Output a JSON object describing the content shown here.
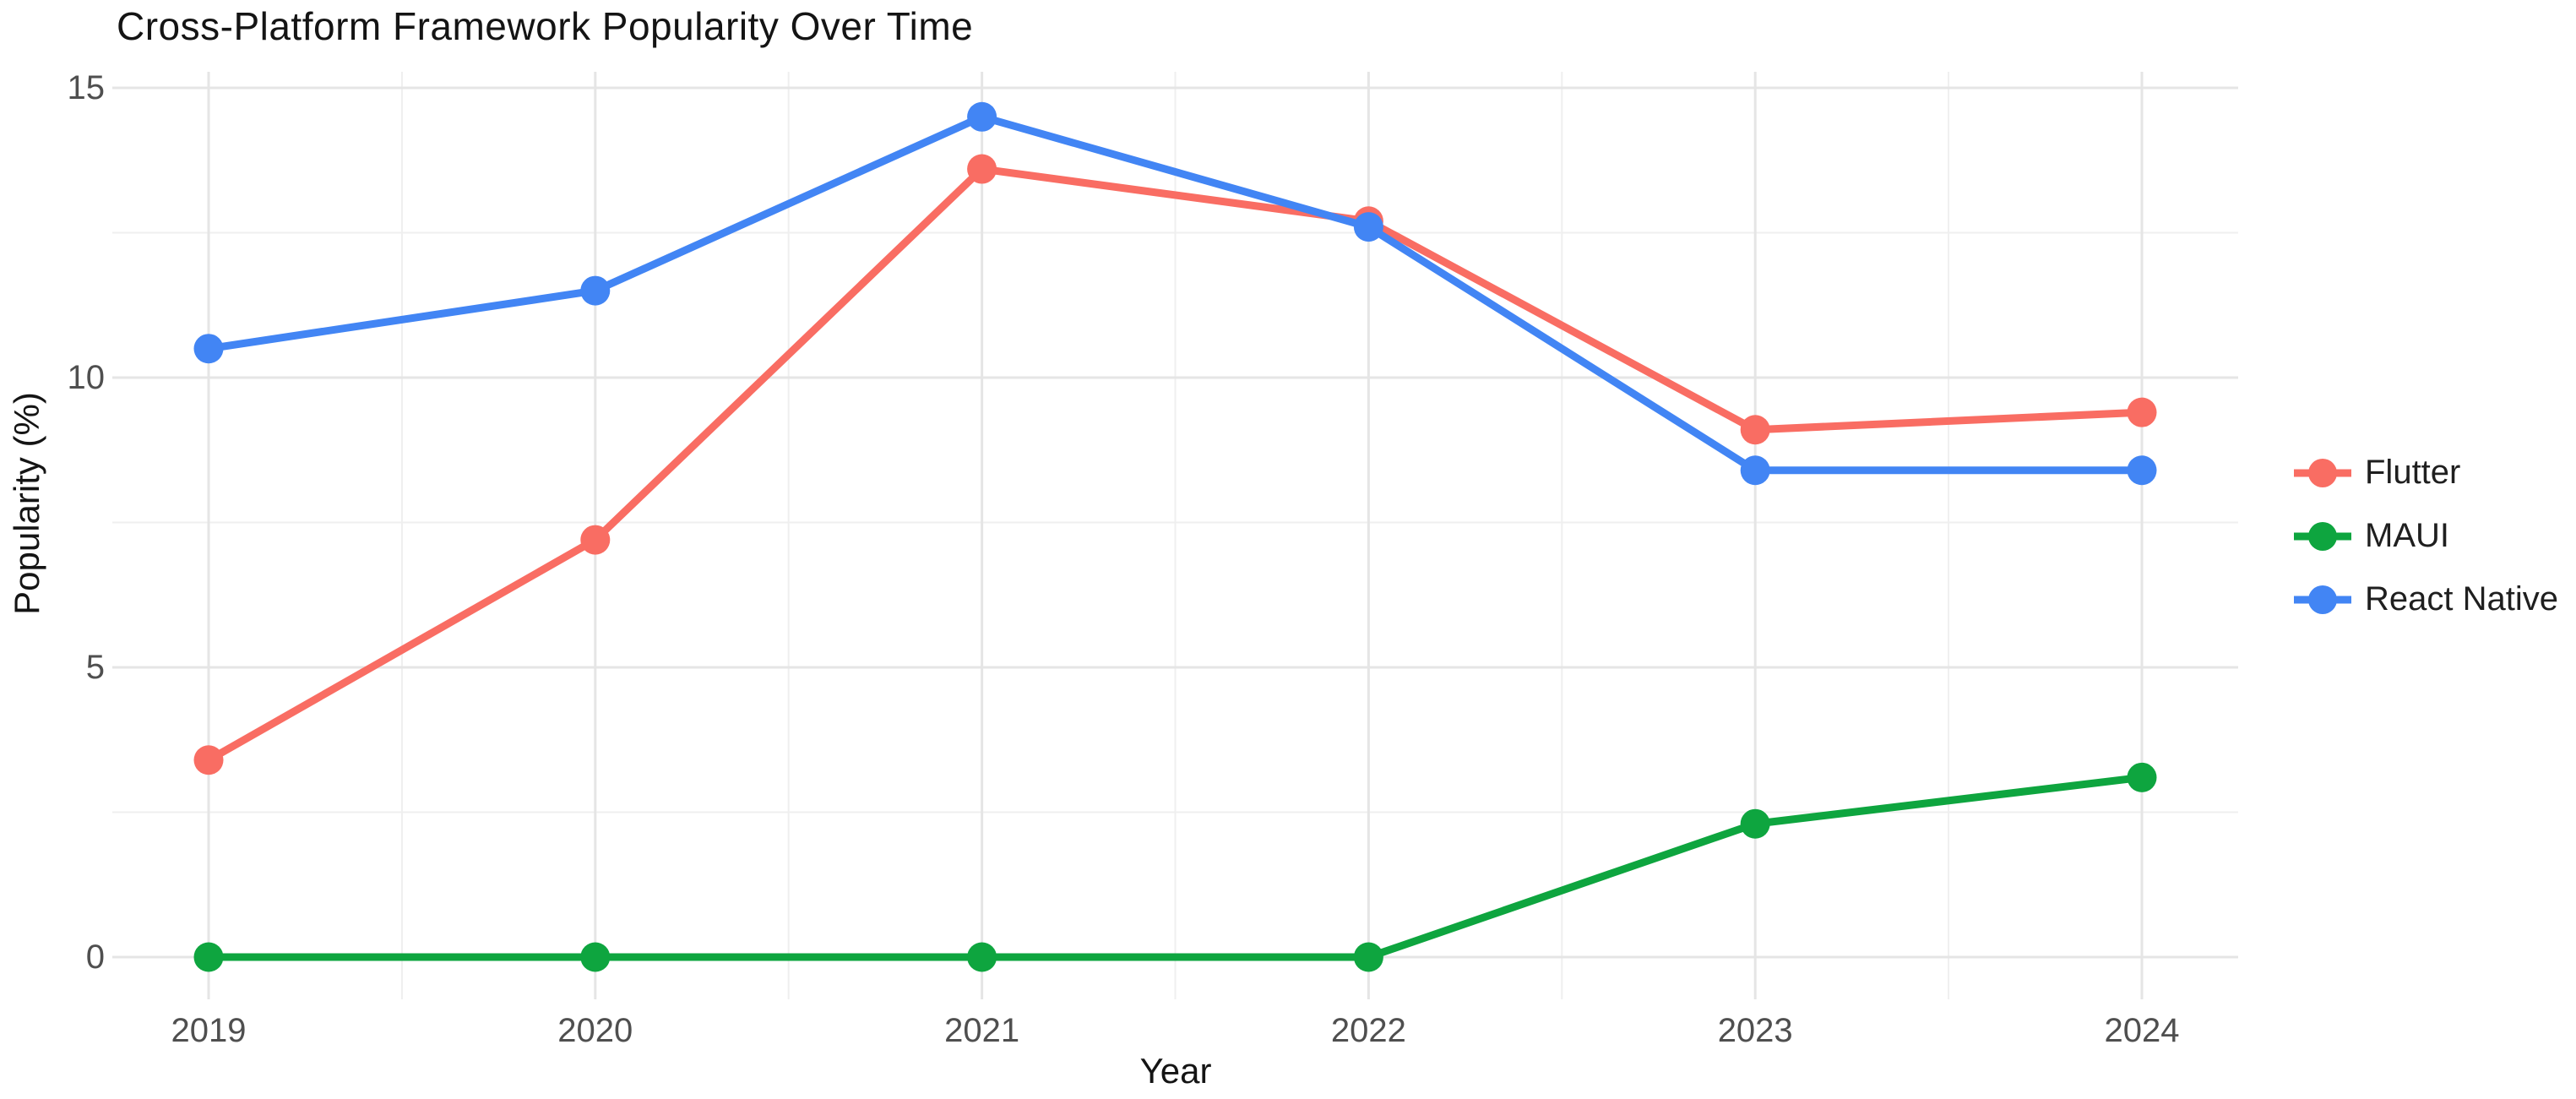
{
  "chart_data": {
    "type": "line",
    "title": "Cross-Platform Framework Popularity Over Time",
    "xlabel": "Year",
    "ylabel": "Popularity (%)",
    "x": [
      2019,
      2020,
      2021,
      2022,
      2023,
      2024
    ],
    "x_tick_labels": [
      "2019",
      "2020",
      "2021",
      "2022",
      "2023",
      "2024"
    ],
    "y_ticks": [
      0,
      5,
      10,
      15
    ],
    "y_minor_gridlines": [
      2.5,
      7.5,
      12.5
    ],
    "x_minor_gridlines": [
      2019.5,
      2020.5,
      2021.5,
      2022.5,
      2023.5
    ],
    "ylim": [
      0,
      15
    ],
    "grid": true,
    "legend_position": "right",
    "colors": {
      "background": "#FFFFFF",
      "gridline_major": "#E5E5E5",
      "gridline_minor": "#EFEFEF",
      "tick_label": "#4F4F4F",
      "title_text": "#141414"
    },
    "series": [
      {
        "name": "Flutter",
        "color": "#F96D63",
        "values": [
          3.4,
          7.2,
          13.6,
          12.7,
          9.1,
          9.4
        ]
      },
      {
        "name": "MAUI",
        "color": "#0EA53F",
        "values": [
          0,
          0,
          0,
          0,
          2.3,
          3.1
        ]
      },
      {
        "name": "React Native",
        "color": "#4285F4",
        "values": [
          10.5,
          11.5,
          14.5,
          12.6,
          8.4,
          8.4
        ]
      }
    ]
  }
}
